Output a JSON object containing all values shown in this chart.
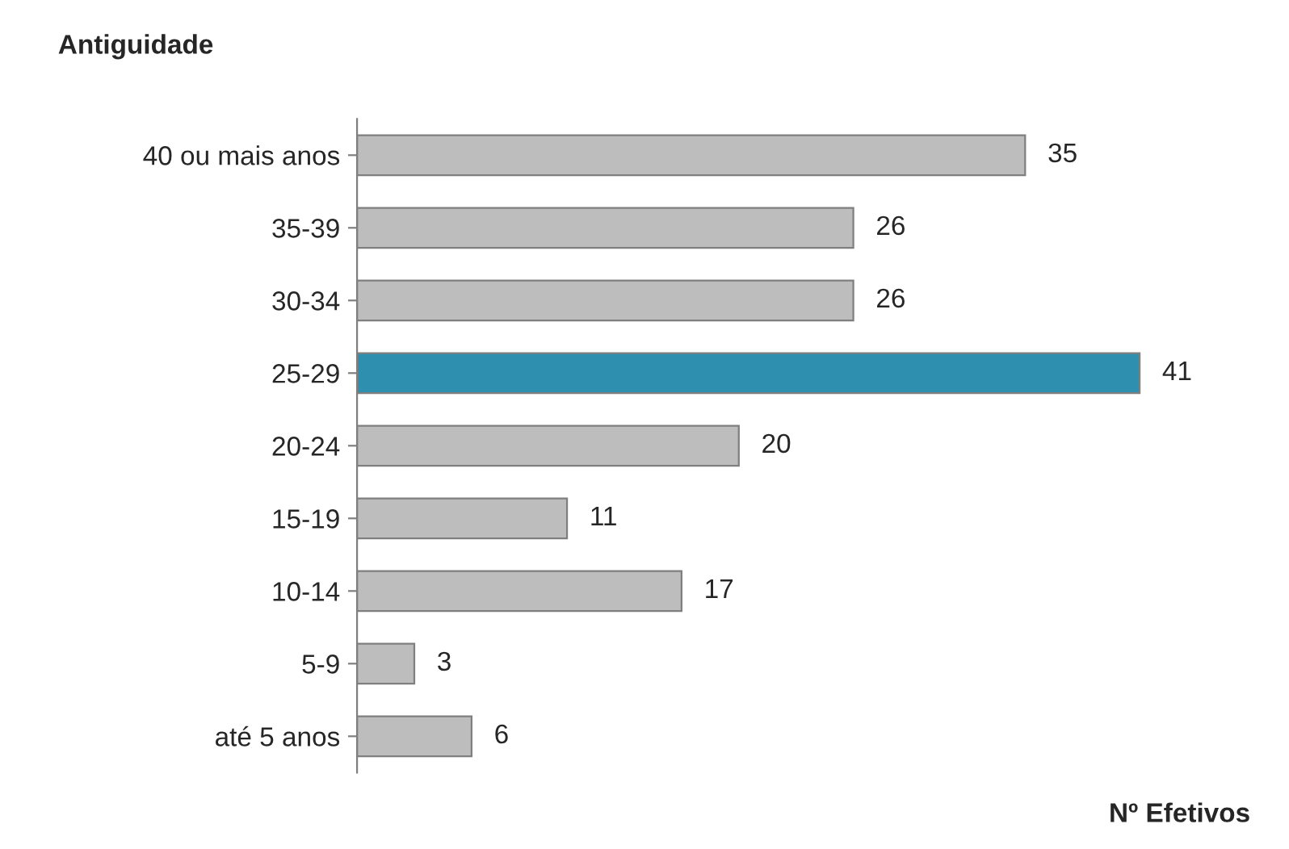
{
  "chart_data": {
    "type": "bar",
    "orientation": "horizontal",
    "title": "Antiguidade",
    "xlabel": "Nº Efetivos",
    "categories": [
      "40 ou mais anos",
      "35-39",
      "30-34",
      "25-29",
      "20-24",
      "15-19",
      "10-14",
      "5-9",
      "até 5 anos"
    ],
    "values": [
      35,
      26,
      26,
      41,
      20,
      11,
      17,
      3,
      6
    ],
    "colors": [
      "#bdbdbd",
      "#bdbdbd",
      "#bdbdbd",
      "#2f8fae",
      "#bdbdbd",
      "#bdbdbd",
      "#bdbdbd",
      "#bdbdbd",
      "#bdbdbd"
    ],
    "data_labels": true,
    "grid": false,
    "legend": false
  }
}
